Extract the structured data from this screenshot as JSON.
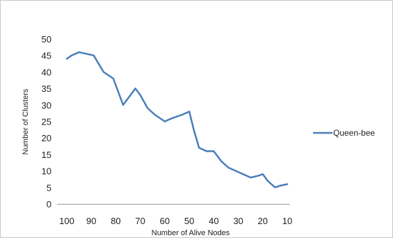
{
  "chart_data": {
    "type": "line",
    "title": "",
    "xlabel": "Number of Alive Nodes",
    "ylabel": "Number of Clusters",
    "xlim": [
      100,
      10
    ],
    "ylim": [
      0,
      50
    ],
    "x_ticks": [
      "100",
      "90",
      "80",
      "70",
      "60",
      "50",
      "40",
      "30",
      "20",
      "10"
    ],
    "y_ticks": [
      "0",
      "5",
      "10",
      "15",
      "20",
      "25",
      "30",
      "35",
      "40",
      "45",
      "50"
    ],
    "grid": false,
    "legend_position": "right",
    "series": [
      {
        "name": "Queen-bee",
        "color": "#4a7ebb",
        "x": [
          100,
          98,
          95,
          92,
          89,
          85,
          81,
          77,
          75,
          72,
          70,
          67,
          64,
          60,
          57,
          53,
          50,
          48,
          46,
          43,
          40,
          37,
          34,
          31,
          28,
          25,
          22,
          20,
          18,
          15,
          13,
          10
        ],
        "y": [
          44,
          45,
          46,
          45.5,
          45,
          40,
          38,
          30,
          32,
          35,
          33,
          29,
          27,
          25,
          26,
          27,
          28,
          22,
          17,
          16,
          16,
          13,
          11,
          10,
          9,
          8,
          8.5,
          9,
          7,
          5,
          5.5,
          6
        ]
      }
    ]
  }
}
